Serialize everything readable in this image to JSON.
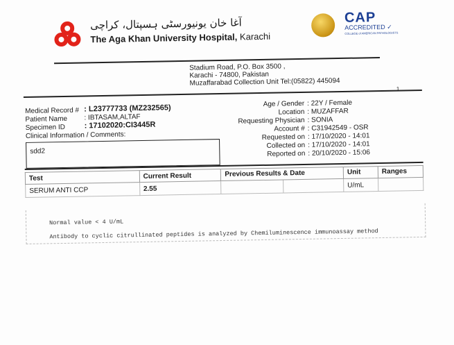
{
  "header": {
    "urdu_name": "آغا خان یونیورسٹی ہسپتال، کراچی",
    "hospital_name": "The Aga Khan University Hospital,",
    "city": "Karachi",
    "cap_logo": "CAP",
    "cap_accredited": "ACCREDITED",
    "cap_college": "COLLEGE of AMERICAN PATHOLOGISTS",
    "brand_color": "#e2231a"
  },
  "address": {
    "line1": "Stadium Road, P.O. Box 3500 ,",
    "line2": "Karachi - 74800, Pakistan",
    "line3": "Muzaffarabad Collection Unit Tel:(05822) 445094"
  },
  "page_number": "1",
  "patient": {
    "left": [
      {
        "label": "Medical Record #",
        "value": ": L23777733 (MZ232565)"
      },
      {
        "label": "Patient Name",
        "value": ": IBTASAM,ALTAF"
      },
      {
        "label": "Specimen ID",
        "value": ": 17102020:CI3445R"
      }
    ],
    "clinical_label": "Clinical Information / Comments:",
    "clinical_value": "sdd2",
    "right": [
      {
        "label": "Age / Gender",
        "value": ": 22Y /  Female"
      },
      {
        "label": "Location",
        "value": ": MUZAFFAR"
      },
      {
        "label": "Requesting Physician",
        "value": ": SONIA"
      },
      {
        "label": "Account #",
        "value": ": C31942549 - OSR"
      },
      {
        "label": "Requested on",
        "value": ": 17/10/2020 - 14:01"
      },
      {
        "label": "Collected on",
        "value": ": 17/10/2020 - 14:01"
      },
      {
        "label": "Reported on",
        "value": ": 20/10/2020 - 15:06"
      }
    ]
  },
  "table": {
    "headers": {
      "test": "Test",
      "current": "Current Result",
      "previous": "Previous Results & Date",
      "unit": "Unit",
      "ranges": "Ranges"
    },
    "unit_value": "U/mL",
    "rows": [
      {
        "test": "SERUM ANTI CCP",
        "current": "2.55"
      }
    ],
    "notes": [
      "Normal value < 4 U/mL",
      "Antibody to cyclic citrullinated peptides is analyzed by Chemiluminescence immunoassay method"
    ]
  }
}
